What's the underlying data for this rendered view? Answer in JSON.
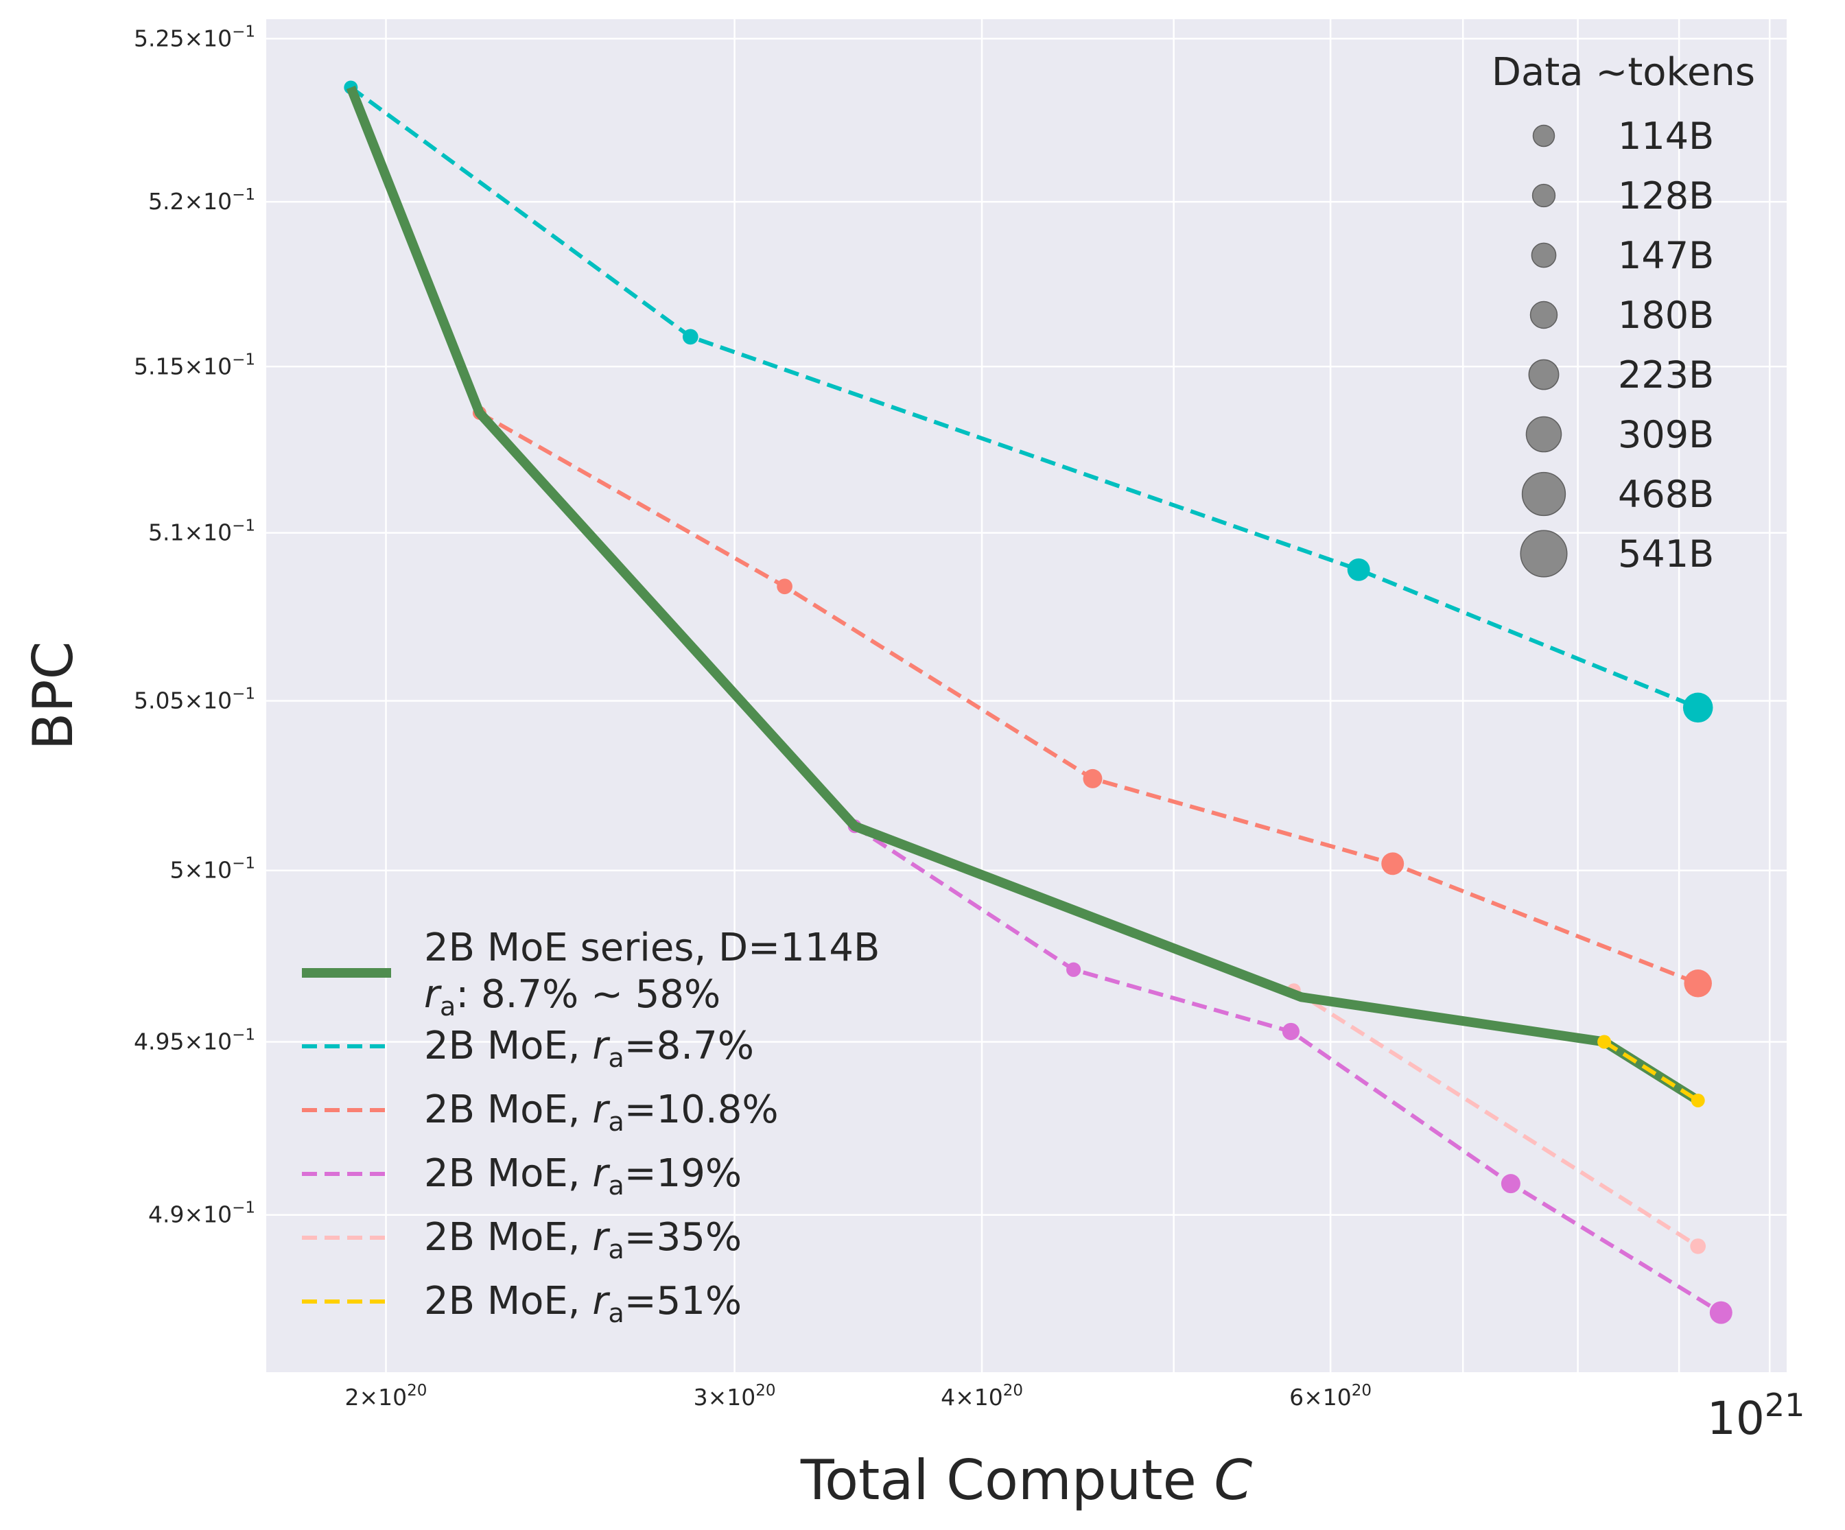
{
  "chart_data": {
    "type": "line",
    "xlabel": "Total Compute C",
    "ylabel": "BPC",
    "x_scale": "log",
    "y_scale": "log",
    "xlim": [
      1.74e+20,
      1.02e+21
    ],
    "ylim": [
      0.4855,
      0.5256
    ],
    "grid": true,
    "x_ticks": [
      {
        "value": 2e+20,
        "mantissa": "2",
        "exp": "20"
      },
      {
        "value": 3e+20,
        "mantissa": "3",
        "exp": "20"
      },
      {
        "value": 4e+20,
        "mantissa": "4",
        "exp": "20"
      },
      {
        "value": 6e+20,
        "mantissa": "6",
        "exp": "20"
      }
    ],
    "x_major_tick": {
      "value": 1e+21,
      "base": "10",
      "exp": "21"
    },
    "x_minor_gridlines": [
      5e+20,
      7e+20,
      8e+20,
      9e+20
    ],
    "y_ticks": [
      {
        "value": 0.525,
        "mantissa": "5.25",
        "exp": "−1"
      },
      {
        "value": 0.52,
        "mantissa": "5.2",
        "exp": "−1"
      },
      {
        "value": 0.515,
        "mantissa": "5.15",
        "exp": "−1"
      },
      {
        "value": 0.51,
        "mantissa": "5.1",
        "exp": "−1"
      },
      {
        "value": 0.505,
        "mantissa": "5.05",
        "exp": "−1"
      },
      {
        "value": 0.5,
        "mantissa": "5",
        "exp": "−1"
      },
      {
        "value": 0.495,
        "mantissa": "4.95",
        "exp": "−1"
      },
      {
        "value": 0.49,
        "mantissa": "4.9",
        "exp": "−1"
      }
    ],
    "series": [
      {
        "name_parts": [
          "2B MoE, ",
          "r",
          "a",
          "=8.7%"
        ],
        "color": "#00BFBF",
        "style": "dashed",
        "points": [
          {
            "x": 1.92e+20,
            "y": 0.5235,
            "d": 114
          },
          {
            "x": 2.85e+20,
            "y": 0.5159,
            "d": 147
          },
          {
            "x": 6.2e+20,
            "y": 0.5089,
            "d": 309
          },
          {
            "x": 9.2e+20,
            "y": 0.5048,
            "d": 541
          }
        ]
      },
      {
        "name_parts": [
          "2B MoE, ",
          "r",
          "a",
          "=10.8%"
        ],
        "color": "#FA8072",
        "style": "dashed",
        "points": [
          {
            "x": 2.23e+20,
            "y": 0.5136,
            "d": 114
          },
          {
            "x": 3.18e+20,
            "y": 0.5084,
            "d": 147
          },
          {
            "x": 4.55e+20,
            "y": 0.5027,
            "d": 223
          },
          {
            "x": 6.45e+20,
            "y": 0.5002,
            "d": 309
          },
          {
            "x": 9.2e+20,
            "y": 0.4967,
            "d": 468
          }
        ]
      },
      {
        "name_parts": [
          "2B MoE, ",
          "r",
          "a",
          "=19%"
        ],
        "color": "#DA70D6",
        "style": "dashed",
        "points": [
          {
            "x": 3.45e+20,
            "y": 0.5013,
            "d": 114
          },
          {
            "x": 4.45e+20,
            "y": 0.4971,
            "d": 128
          },
          {
            "x": 5.73e+20,
            "y": 0.4953,
            "d": 180
          },
          {
            "x": 7.4e+20,
            "y": 0.4909,
            "d": 223
          },
          {
            "x": 9.45e+20,
            "y": 0.4872,
            "d": 309
          }
        ]
      },
      {
        "name_parts": [
          "2B MoE, ",
          "r",
          "a",
          "=35%"
        ],
        "color": "#FFBEBE",
        "style": "dashed",
        "points": [
          {
            "x": 5.75e+20,
            "y": 0.4965,
            "d": 114
          },
          {
            "x": 9.2e+20,
            "y": 0.4891,
            "d": 147
          }
        ]
      },
      {
        "name_parts": [
          "2B MoE, ",
          "r",
          "a",
          "=51%"
        ],
        "color": "#FFD000",
        "style": "dashed",
        "points": [
          {
            "x": 8.25e+20,
            "y": 0.495,
            "d": 114
          },
          {
            "x": 9.2e+20,
            "y": 0.4933,
            "d": 114
          }
        ]
      }
    ],
    "envelope": {
      "name_line1": "2B MoE series, D=114B",
      "name_line2_parts": [
        "r",
        "a",
        ": 8.7% ~ 58%"
      ],
      "color": "#4F8D4F",
      "points": [
        {
          "x": 1.92e+20,
          "y": 0.5235
        },
        {
          "x": 2.23e+20,
          "y": 0.5136
        },
        {
          "x": 3.45e+20,
          "y": 0.5013
        },
        {
          "x": 5.8e+20,
          "y": 0.4963
        },
        {
          "x": 8.25e+20,
          "y": 0.495
        },
        {
          "x": 9.2e+20,
          "y": 0.4933
        }
      ]
    },
    "size_legend": {
      "title": "Data ~tokens",
      "placement": "top-right",
      "entries": [
        {
          "label": "114B",
          "d": 114
        },
        {
          "label": "128B",
          "d": 128
        },
        {
          "label": "147B",
          "d": 147
        },
        {
          "label": "180B",
          "d": 180
        },
        {
          "label": "223B",
          "d": 223
        },
        {
          "label": "309B",
          "d": 309
        },
        {
          "label": "468B",
          "d": 468
        },
        {
          "label": "541B",
          "d": 541
        }
      ]
    },
    "series_legend_placement": "lower-left"
  }
}
